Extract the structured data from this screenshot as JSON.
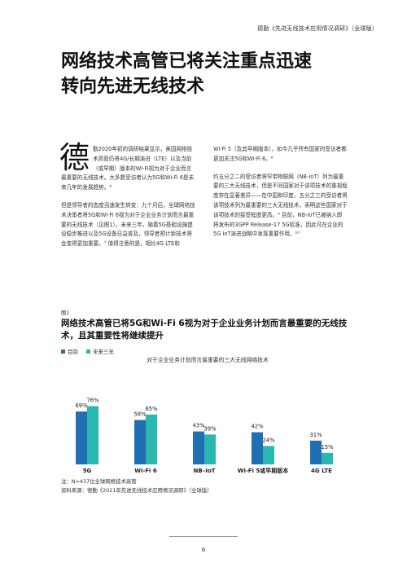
{
  "header": {
    "running_title": "德勤《先进无线技术应用情况调研》（全球版）"
  },
  "title": {
    "line1": "网络技术高管已将关注重点迅速",
    "line2": "转向先进无线技术"
  },
  "body": {
    "dropcap": "德",
    "left_p1": "勤2020年初的调研结果显示，美国网络技术高管仍将4G/长期演进（LTE）以及当前（或早期）版本的Wi-Fi视为对于企业而言最重要的无线技术。大多数受访者认为5G和Wi-Fi 6是未来几年的发展趋势。⁶",
    "left_p2": "但是领导者的态度迅速发生转变：九个月后，全球网络技术决策者将5G和Wi-Fi 6视为对于企业业务计划而言最重要的无线技术（见图1）。未来三年，随着5G基础设施建设稳步推进以及5G设备日益普及，领导者预计新技术将会变得更加重要。⁷ 值得注意的是，相比4G LTE和",
    "right_p1": "Wi-Fi 5（及其早期版本），如今几乎所有国家的受访者都更加关注5G和Wi-Fi 6。⁸",
    "right_p2": "约五分之二的受访者将窄带物联网（NB-IoT）列为最重要的三大无线技术，但是不同国家对于该项技术的重视程度存在显著差异——在中国和印度，五分之三的受访者将该项技术列为最重要的三大无线技术，表明这些国家对于该项技术的接受程度更高。⁹ 目前，NB-IoT已被纳入即将发布的3GPP Release-17 5G标准，因此可在企业的5G IoT演进战略中发挥重要作用。¹⁰"
  },
  "figure": {
    "label": "图1",
    "title": "网络技术高管已将5G和Wi-Fi 6视为对于企业业务计划而言最重要的无线技术，且其重要性将继续提升",
    "legend": [
      {
        "label": "目前",
        "color": "#1f6fb2"
      },
      {
        "label": "未来三年",
        "color": "#2ab7b0"
      }
    ]
  },
  "chart_data": {
    "type": "bar",
    "title": "对于企业业务计划而言最重要的三大无线网络技术",
    "categories": [
      "5G",
      "Wi-Fi 6",
      "NB–IoT",
      "Wi-Fi 5或早期版本",
      "4G LTE"
    ],
    "series": [
      {
        "name": "目前",
        "values": [
          69,
          58,
          43,
          42,
          31
        ],
        "labels": [
          "69%",
          "58%",
          "43%",
          "42%",
          "31%"
        ],
        "color": "#1f6fb2"
      },
      {
        "name": "未来三年",
        "values": [
          76,
          65,
          39,
          24,
          15
        ],
        "labels": [
          "76%",
          "65%",
          "39%",
          "24%",
          "15%"
        ],
        "color": "#2ab7b0"
      }
    ],
    "ylim": [
      0,
      100
    ],
    "grid": false,
    "legend_position": "top-left"
  },
  "notes": {
    "note": "注：N=437位全球网络技术高管",
    "source": "资料来源：德勤《2021年先进无线技术应用情况调研》（全球版）"
  },
  "page_number": "6"
}
